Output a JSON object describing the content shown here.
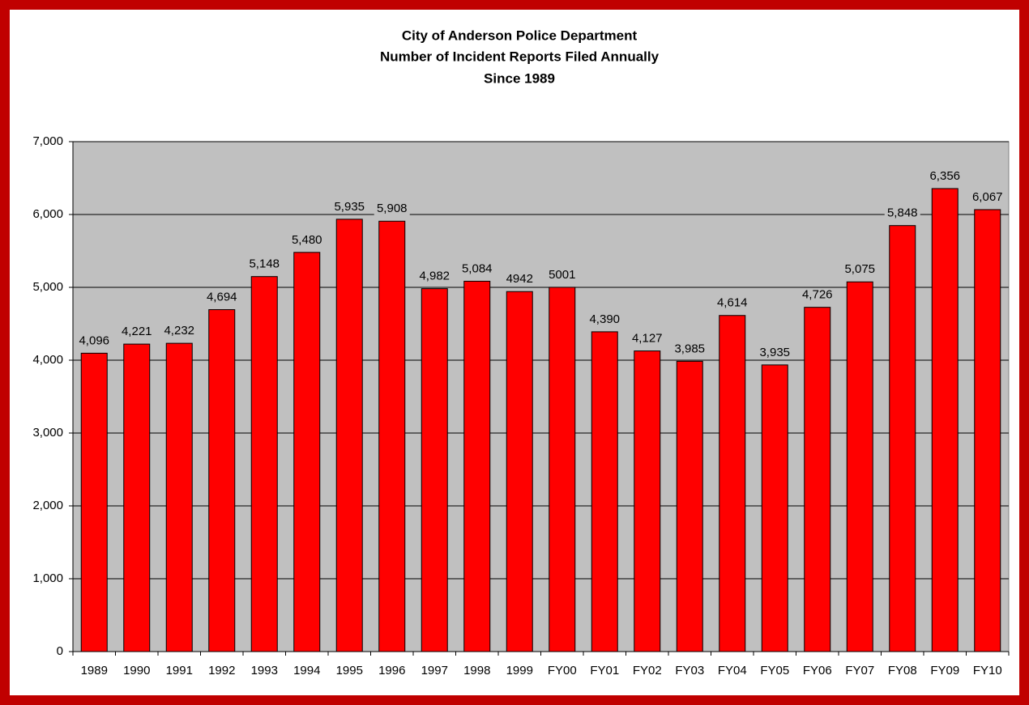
{
  "chart_data": {
    "type": "bar",
    "title": [
      "City of Anderson Police Department",
      "Number of Incident Reports Filed Annually",
      "Since 1989"
    ],
    "categories": [
      "1989",
      "1990",
      "1991",
      "1992",
      "1993",
      "1994",
      "1995",
      "1996",
      "1997",
      "1998",
      "1999",
      "FY00",
      "FY01",
      "FY02",
      "FY03",
      "FY04",
      "FY05",
      "FY06",
      "FY07",
      "FY08",
      "FY09",
      "FY10"
    ],
    "values": [
      4096,
      4221,
      4232,
      4694,
      5148,
      5480,
      5935,
      5908,
      4982,
      5084,
      4942,
      5001,
      4390,
      4127,
      3985,
      4614,
      3935,
      4726,
      5075,
      5848,
      6356,
      6067
    ],
    "value_labels": [
      "4,096",
      "4,221",
      "4,232",
      "4,694",
      "5,148",
      "5,480",
      "5,935",
      "5,908",
      "4,982",
      "5,084",
      "4942",
      "5001",
      "4,390",
      "4,127",
      "3,985",
      "4,614",
      "3,935",
      "4,726",
      "5,075",
      "5,848",
      "6,356",
      "6,067"
    ],
    "color": "#ff0000",
    "ylim": [
      0,
      7000
    ],
    "yticks": [
      0,
      {
        "value": 1000,
        "label": "1,000"
      },
      {
        "value": 2000,
        "label": "2,000"
      },
      {
        "value": 3000,
        "label": "3,000"
      },
      {
        "value": 4000,
        "label": "4,000"
      },
      {
        "value": 5000,
        "label": "5,000"
      },
      {
        "value": 6000,
        "label": "6,000"
      },
      {
        "value": 7000,
        "label": "7,000"
      }
    ],
    "grid": true
  }
}
